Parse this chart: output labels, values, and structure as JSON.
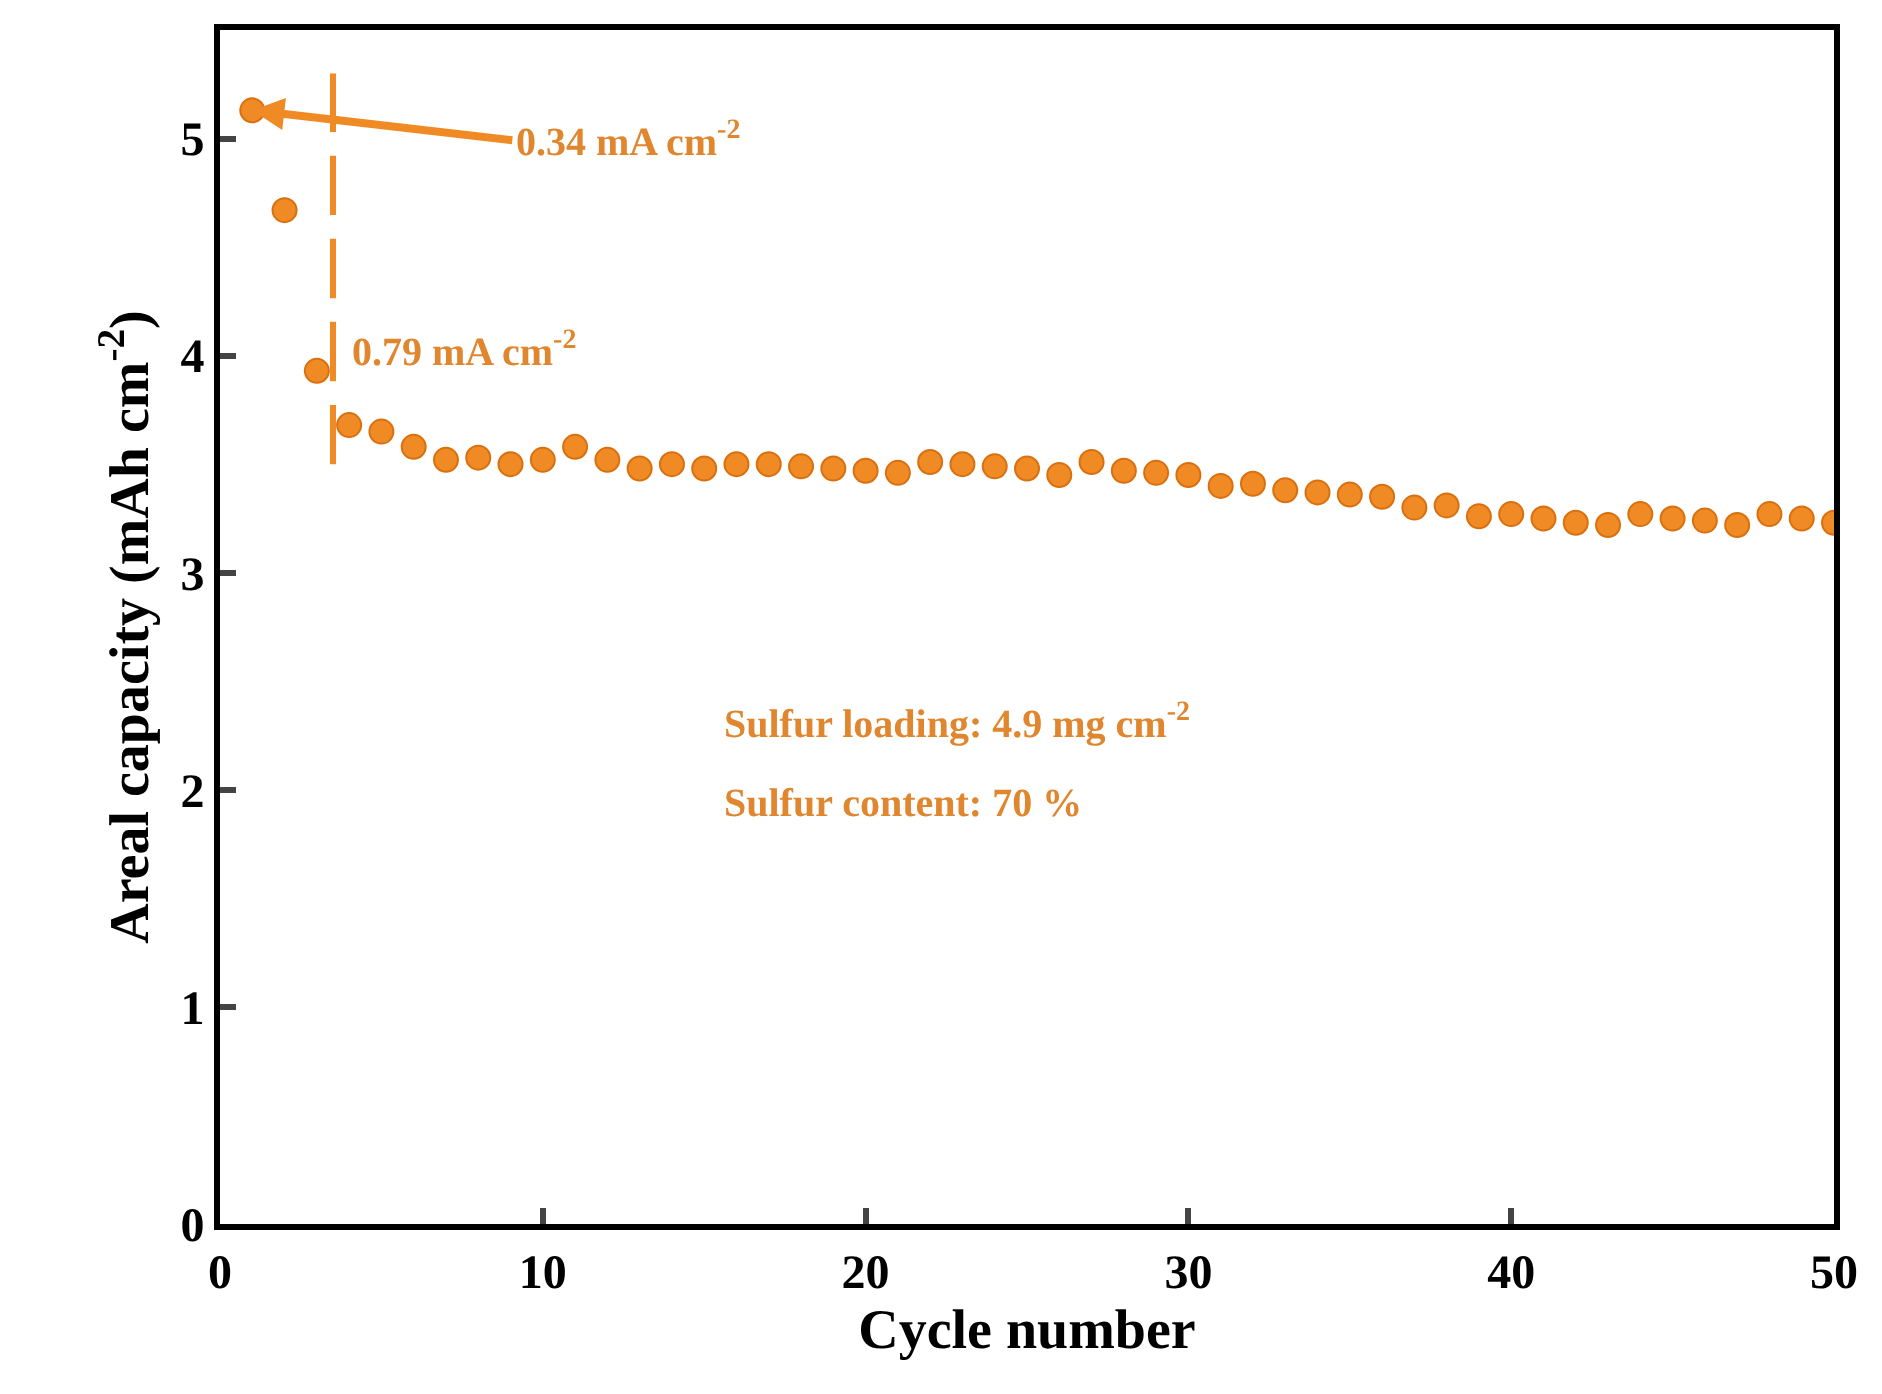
{
  "chart_data": {
    "type": "scatter",
    "xlabel": "Cycle number",
    "ylabel": "Areal capacity (mAh cm$^{-2}$)",
    "xlim": [
      0,
      50
    ],
    "xticks": [
      0,
      10,
      20,
      30,
      40,
      50
    ],
    "ylim": [
      0,
      5.5
    ],
    "yticks": [
      0,
      1,
      2,
      3,
      4,
      5
    ],
    "marker": "circle",
    "series": [
      {
        "color": "#f08a24",
        "x": [
          1,
          2,
          3,
          4,
          5,
          6,
          7,
          8,
          9,
          10,
          11,
          12,
          13,
          14,
          15,
          16,
          17,
          18,
          19,
          20,
          21,
          22,
          23,
          24,
          25,
          26,
          27,
          28,
          29,
          30,
          31,
          32,
          33,
          34,
          35,
          36,
          37,
          38,
          39,
          40,
          41,
          42,
          43,
          44,
          45,
          46,
          47,
          48,
          49,
          50
        ],
        "values": [
          5.13,
          4.67,
          3.93,
          3.68,
          3.65,
          3.58,
          3.52,
          3.53,
          3.5,
          3.52,
          3.58,
          3.52,
          3.48,
          3.5,
          3.48,
          3.5,
          3.5,
          3.49,
          3.48,
          3.47,
          3.46,
          3.51,
          3.5,
          3.49,
          3.48,
          3.45,
          3.51,
          3.47,
          3.46,
          3.45,
          3.4,
          3.41,
          3.38,
          3.37,
          3.36,
          3.35,
          3.3,
          3.31,
          3.26,
          3.27,
          3.25,
          3.23,
          3.22,
          3.27,
          3.25,
          3.24,
          3.22,
          3.27,
          3.25,
          3.23
        ]
      },
      {
        "type": "line",
        "color": "#f08a24",
        "line_style": "dashed",
        "marker": "none",
        "x": [
          3.5,
          3.5
        ],
        "values": [
          3.5,
          5.3
        ]
      }
    ],
    "annotations": [
      {
        "text": "0.34 mA cm$^{-2}$",
        "x": 1,
        "y": 5.13
      },
      {
        "text": "0.79 mA cm$^{-2}$",
        "x": 3.5,
        "y": 3.9
      },
      "Sulfur loading: 4.9 mg cm$^{-2}$",
      "Sulfur content: 70 %"
    ]
  }
}
